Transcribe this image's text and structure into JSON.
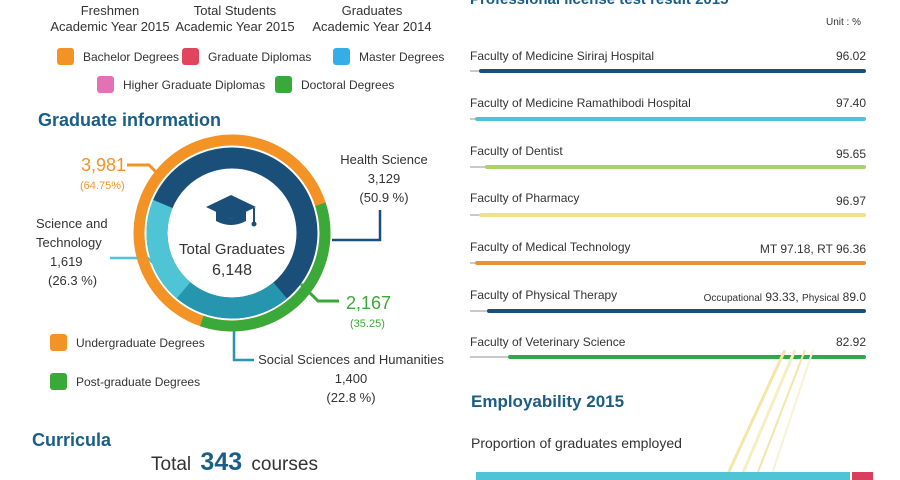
{
  "header": {
    "col1_line1": "Freshmen",
    "col1_line2": "Academic Year 2015",
    "col2_line1": "Total Students",
    "col2_line2": "Academic Year 2015",
    "col3_line1": "Graduates",
    "col3_line2": "Academic Year 2014"
  },
  "legend_top": [
    {
      "label": "Bachelor Degrees",
      "color": "#f39325"
    },
    {
      "label": "Graduate Diplomas",
      "color": "#e0455d"
    },
    {
      "label": "Master Degrees",
      "color": "#35aee8"
    },
    {
      "label": "Higher Graduate Diplomas",
      "color": "#e272b4"
    },
    {
      "label": "Doctoral Degrees",
      "color": "#3aa93a"
    }
  ],
  "graduate_info": {
    "title": "Graduate information",
    "center_label": "Total Graduates",
    "center_value": "6,148",
    "undergrad_value": "3,981",
    "undergrad_pct": "(64.75%)",
    "postgrad_value": "2,167",
    "postgrad_pct": "(35.25)",
    "health": {
      "name": "Health Science",
      "value": "3,129",
      "pct": "(50.9 %)"
    },
    "science": {
      "name_line1": "Science and",
      "name_line2": "Technology",
      "value": "1,619",
      "pct": "(26.3 %)"
    },
    "social": {
      "name": "Social Sciences and Humanities",
      "value": "1,400",
      "pct": "(22.8 %)"
    },
    "legend": [
      {
        "label": "Undergraduate Degrees",
        "color": "#f39325"
      },
      {
        "label": "Post-graduate Degrees",
        "color": "#3aa93a"
      }
    ],
    "colors": {
      "undergrad": "#f39325",
      "postgrad": "#3aa93a",
      "health": "#1a4f7a",
      "science": "#4ec4d5",
      "social": "#2596ae"
    }
  },
  "curricula": {
    "title": "Curricula",
    "total_prefix": "Total",
    "total_number": "343",
    "total_suffix": "courses"
  },
  "license": {
    "title_cut": "Professional license test result 2015",
    "unit": "Unit : %",
    "rows": [
      {
        "name": "Faculty of Medicine Siriraj Hospital",
        "value": "96.02",
        "color": "#1a4f7a"
      },
      {
        "name": "Faculty of Medicine Ramathibodi Hospital",
        "value": "97.40",
        "color": "#4ec4d5"
      },
      {
        "name": "Faculty of Dentist",
        "value": "95.65",
        "color": "#a9d46a"
      },
      {
        "name": "Faculty of Pharmacy",
        "value": "96.97",
        "color": "#f1e27f"
      },
      {
        "name": "Faculty of Medical Technology",
        "value": "MT 97.18, RT 96.36",
        "color": "#ee8f34"
      },
      {
        "name": "Faculty of Physical Therapy",
        "value_a_label": "Occupational",
        "value_a": "93.33,",
        "value_b_label": "Physical",
        "value_b": "89.0",
        "color": "#1a4f7a"
      },
      {
        "name": "Faculty of Veterinary Science",
        "value": "82.92",
        "color": "#2fa84f"
      }
    ]
  },
  "employability": {
    "title": "Employability 2015",
    "subtitle": "Proportion of graduates employed"
  }
}
